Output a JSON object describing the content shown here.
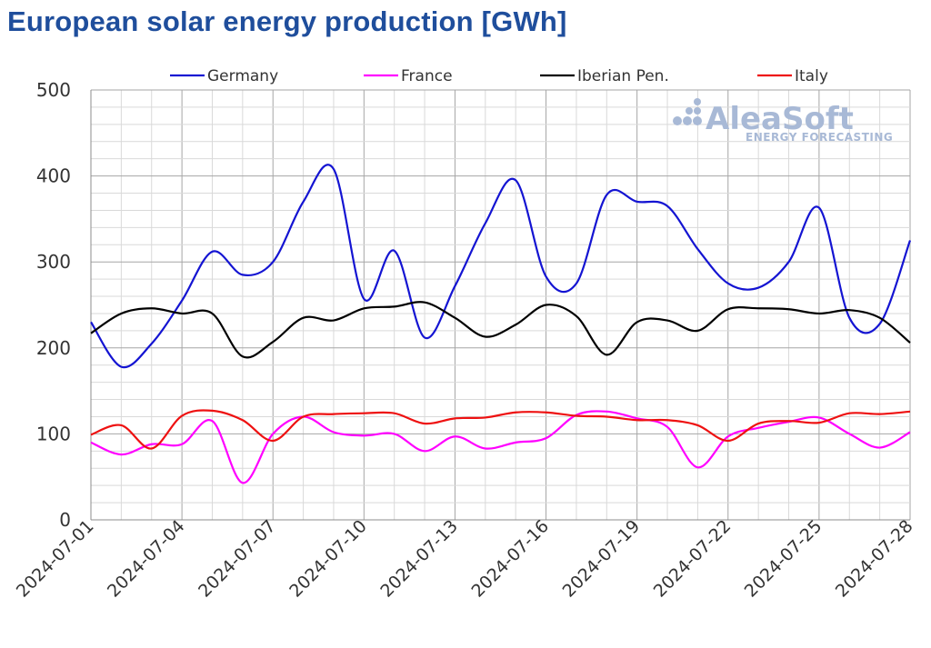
{
  "chart_data": {
    "type": "line",
    "title": "European solar energy production [GWh]",
    "xlabel": "",
    "ylabel": "",
    "ylim": [
      0,
      500
    ],
    "yticks": [
      0,
      100,
      200,
      300,
      400,
      500
    ],
    "xticks": [
      "2024-07-01",
      "2024-07-04",
      "2024-07-07",
      "2024-07-10",
      "2024-07-13",
      "2024-07-16",
      "2024-07-19",
      "2024-07-22",
      "2024-07-25",
      "2024-07-28"
    ],
    "x": [
      "2024-07-01",
      "2024-07-02",
      "2024-07-03",
      "2024-07-04",
      "2024-07-05",
      "2024-07-06",
      "2024-07-07",
      "2024-07-08",
      "2024-07-09",
      "2024-07-10",
      "2024-07-11",
      "2024-07-12",
      "2024-07-13",
      "2024-07-14",
      "2024-07-15",
      "2024-07-16",
      "2024-07-17",
      "2024-07-18",
      "2024-07-19",
      "2024-07-20",
      "2024-07-21",
      "2024-07-22",
      "2024-07-23",
      "2024-07-24",
      "2024-07-25",
      "2024-07-26",
      "2024-07-27",
      "2024-07-28"
    ],
    "grid": true,
    "legend_position": "top",
    "series": [
      {
        "name": "Germany",
        "color": "#1414d2",
        "values": [
          230,
          178,
          205,
          255,
          312,
          285,
          300,
          370,
          408,
          257,
          313,
          212,
          272,
          345,
          395,
          283,
          275,
          378,
          370,
          365,
          315,
          275,
          270,
          300,
          363,
          235,
          228,
          325
        ]
      },
      {
        "name": "France",
        "color": "#ff00ff",
        "values": [
          90,
          76,
          88,
          88,
          115,
          43,
          100,
          120,
          102,
          98,
          100,
          80,
          97,
          83,
          90,
          95,
          122,
          126,
          118,
          108,
          61,
          97,
          107,
          114,
          119,
          100,
          84,
          102
        ]
      },
      {
        "name": "Iberian Pen.",
        "color": "#000000",
        "values": [
          217,
          240,
          246,
          240,
          240,
          190,
          207,
          235,
          232,
          246,
          248,
          253,
          235,
          213,
          227,
          250,
          237,
          192,
          230,
          232,
          220,
          245,
          246,
          245,
          240,
          244,
          235,
          206
        ]
      },
      {
        "name": "Italy",
        "color": "#ee1111",
        "values": [
          99,
          110,
          83,
          121,
          127,
          116,
          92,
          120,
          123,
          124,
          124,
          112,
          118,
          119,
          125,
          125,
          121,
          120,
          116,
          116,
          110,
          92,
          112,
          115,
          113,
          124,
          123,
          126
        ]
      }
    ]
  },
  "watermark": {
    "brand": "AleaSoft",
    "tagline": "ENERGY FORECASTING"
  }
}
